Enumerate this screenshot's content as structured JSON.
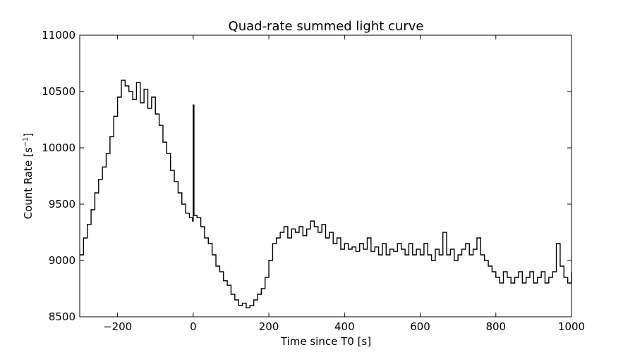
{
  "chart_data": {
    "type": "line",
    "title": "Quad-rate summed light curve",
    "xlabel": "Time since T0 [s]",
    "ylabel_text": "Count Rate [s",
    "ylabel_sup": "−1",
    "ylabel_close": "]",
    "xlim": [
      -300,
      1000
    ],
    "ylim": [
      8500,
      11000
    ],
    "xticks": [
      -200,
      0,
      200,
      400,
      600,
      800,
      1000
    ],
    "xtick_labels": [
      "−200",
      "0",
      "200",
      "400",
      "600",
      "800",
      "1000"
    ],
    "yticks": [
      8500,
      9000,
      9500,
      10000,
      10500,
      11000
    ],
    "ytick_labels": [
      "8500",
      "9000",
      "9500",
      "10000",
      "10500",
      "11000"
    ],
    "grid": false,
    "line_color": "#000000",
    "series": [
      {
        "style": "step",
        "x": [
          -300,
          -290,
          -280,
          -270,
          -260,
          -250,
          -240,
          -230,
          -220,
          -210,
          -200,
          -190,
          -180,
          -170,
          -160,
          -150,
          -140,
          -130,
          -120,
          -110,
          -100,
          -90,
          -80,
          -70,
          -60,
          -50,
          -40,
          -30,
          -20,
          -10,
          -2,
          0,
          2,
          10,
          20,
          30,
          40,
          50,
          60,
          70,
          80,
          90,
          100,
          110,
          120,
          130,
          140,
          150,
          160,
          170,
          180,
          190,
          200,
          210,
          220,
          230,
          240,
          250,
          260,
          270,
          280,
          290,
          300,
          310,
          320,
          330,
          340,
          350,
          360,
          370,
          380,
          390,
          400,
          410,
          420,
          430,
          440,
          450,
          460,
          470,
          480,
          490,
          500,
          510,
          520,
          530,
          540,
          550,
          560,
          570,
          580,
          590,
          600,
          610,
          620,
          630,
          640,
          650,
          660,
          670,
          680,
          690,
          700,
          710,
          720,
          730,
          740,
          750,
          760,
          770,
          780,
          790,
          800,
          810,
          820,
          830,
          840,
          850,
          860,
          870,
          880,
          890,
          900,
          910,
          920,
          930,
          940,
          950,
          960,
          970,
          980,
          990,
          1000
        ],
        "y": [
          9050,
          9200,
          9320,
          9450,
          9600,
          9720,
          9830,
          9950,
          10100,
          10280,
          10450,
          10600,
          10550,
          10500,
          10430,
          10580,
          10400,
          10520,
          10350,
          10450,
          10300,
          10200,
          10050,
          9950,
          9800,
          9700,
          9600,
          9500,
          9420,
          9380,
          9350,
          10380,
          9400,
          9380,
          9300,
          9200,
          9150,
          9050,
          8950,
          8900,
          8820,
          8780,
          8700,
          8650,
          8600,
          8620,
          8580,
          8600,
          8650,
          8700,
          8750,
          8850,
          9000,
          9150,
          9200,
          9250,
          9300,
          9200,
          9280,
          9250,
          9300,
          9220,
          9280,
          9350,
          9300,
          9250,
          9320,
          9200,
          9250,
          9150,
          9200,
          9100,
          9150,
          9100,
          9120,
          9080,
          9150,
          9100,
          9200,
          9080,
          9120,
          9050,
          9150,
          9050,
          9100,
          9080,
          9150,
          9100,
          9050,
          9150,
          9050,
          9100,
          9050,
          9150,
          9050,
          9000,
          9100,
          9050,
          9250,
          9050,
          9100,
          9000,
          9050,
          9100,
          9150,
          9050,
          9100,
          9200,
          9050,
          9000,
          8950,
          8900,
          8850,
          8800,
          8900,
          8850,
          8800,
          8850,
          8900,
          8800,
          8850,
          8900,
          8800,
          8850,
          8900,
          8800,
          8850,
          8900,
          9150,
          8950,
          8850,
          8800,
          8900
        ]
      }
    ]
  }
}
